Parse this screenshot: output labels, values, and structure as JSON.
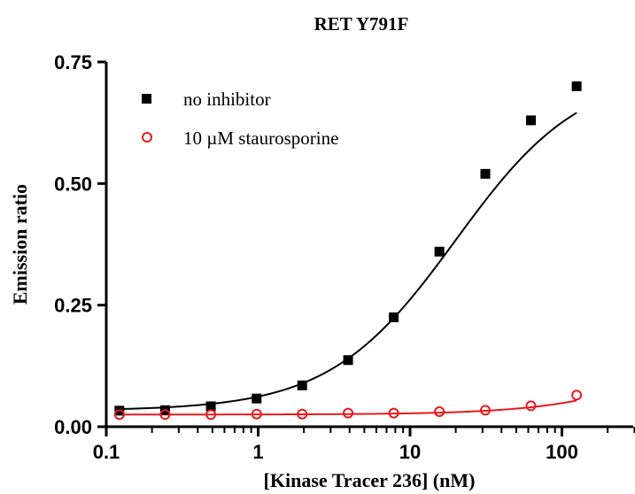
{
  "chart_data": {
    "type": "scatter",
    "title": "RET Y791F",
    "xlabel": "[Kinase Tracer 236] (nM)",
    "ylabel": "Emission ratio",
    "x_scale": "log",
    "xlim": [
      0.1,
      300
    ],
    "ylim": [
      0,
      0.75
    ],
    "x_ticks": [
      {
        "value": 0.1,
        "label": "0.1"
      },
      {
        "value": 1,
        "label": "1"
      },
      {
        "value": 10,
        "label": "10"
      },
      {
        "value": 100,
        "label": "100"
      }
    ],
    "y_ticks": [
      {
        "value": 0,
        "label": "0.00"
      },
      {
        "value": 0.25,
        "label": "0.25"
      },
      {
        "value": 0.5,
        "label": "0.50"
      },
      {
        "value": 0.75,
        "label": "0.75"
      }
    ],
    "legend_position": "top-left",
    "series": [
      {
        "name": "no inhibitor",
        "marker": "filled-square",
        "color": "#000000",
        "x": [
          0.122,
          0.244,
          0.488,
          0.977,
          1.95,
          3.91,
          7.81,
          15.6,
          31.3,
          62.5,
          125
        ],
        "y": [
          0.033,
          0.034,
          0.042,
          0.058,
          0.085,
          0.137,
          0.225,
          0.36,
          0.52,
          0.63,
          0.7
        ],
        "fit": {
          "bottom": 0.033,
          "top": 0.735,
          "ec50": 20.0,
          "hill": 1.05
        }
      },
      {
        "name": "10 µM staurosporine",
        "marker": "open-circle",
        "color": "#e8191c",
        "x": [
          0.122,
          0.244,
          0.488,
          0.977,
          1.95,
          3.91,
          7.81,
          15.6,
          31.3,
          62.5,
          125
        ],
        "y": [
          0.025,
          0.025,
          0.025,
          0.026,
          0.026,
          0.028,
          0.028,
          0.031,
          0.034,
          0.043,
          0.065
        ],
        "fit": {
          "bottom": 0.025,
          "top": 0.33,
          "ec50": 1200,
          "hill": 1.0
        }
      }
    ]
  }
}
